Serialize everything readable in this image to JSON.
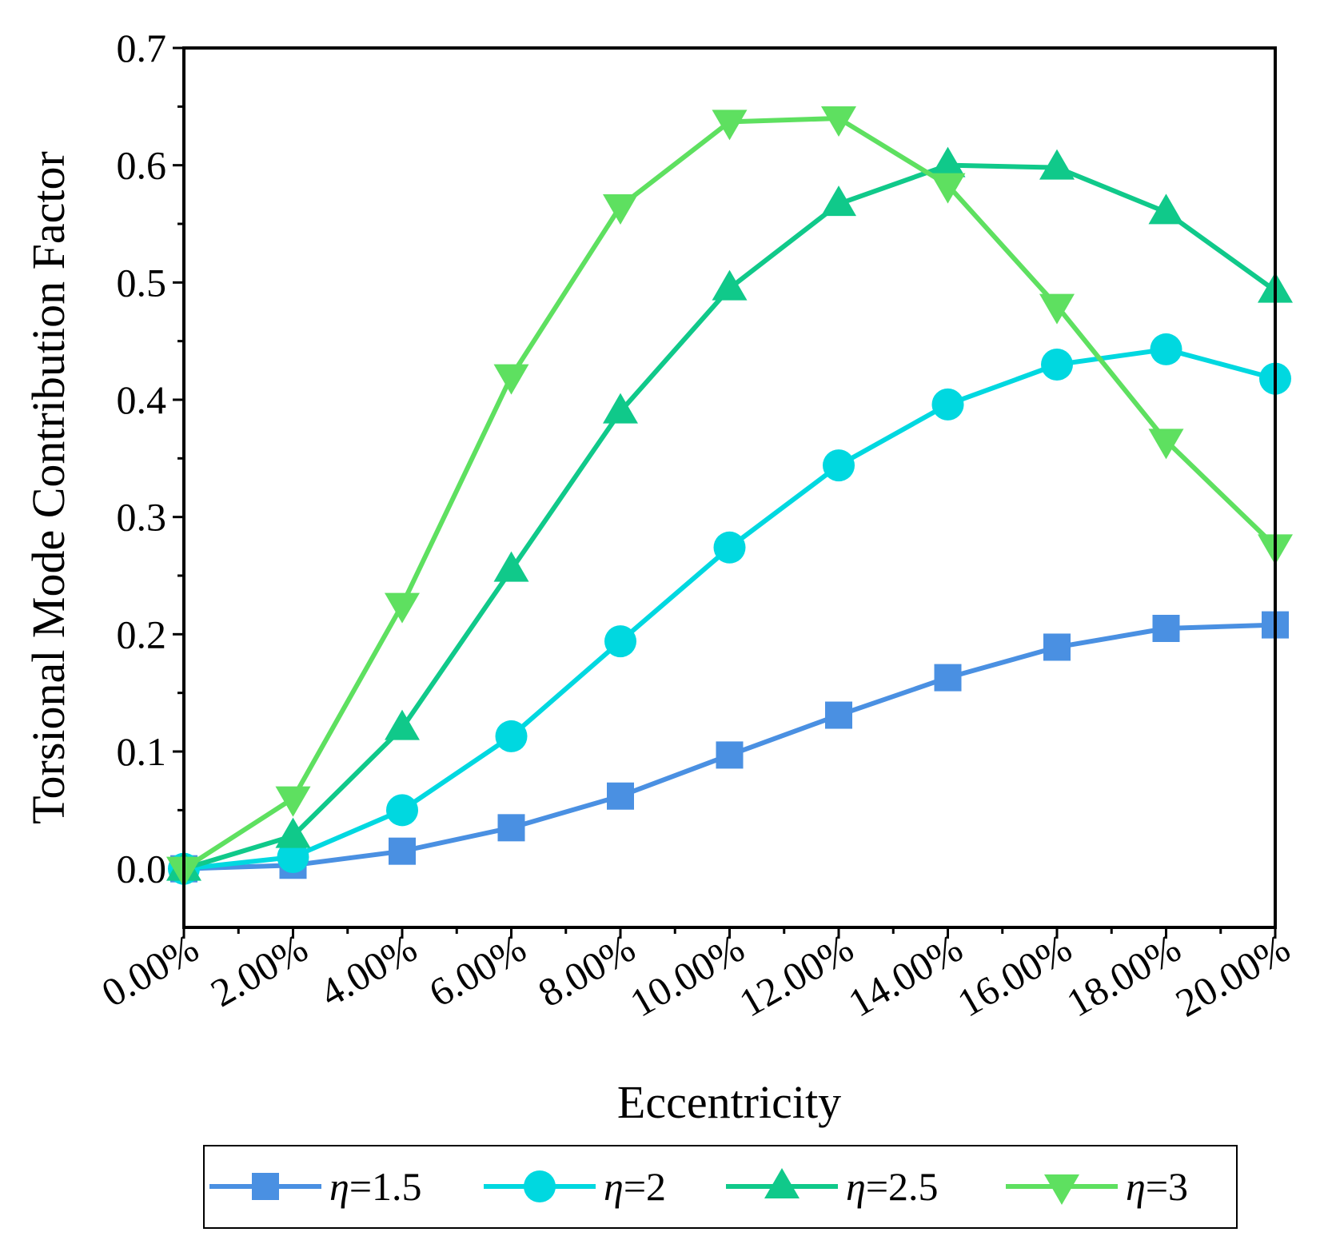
{
  "chart_data": {
    "type": "line",
    "title": "",
    "xlabel": "Eccentricity",
    "ylabel": "Torsional Mode Contribution Factor",
    "x": [
      0,
      2,
      4,
      6,
      8,
      10,
      12,
      14,
      16,
      18,
      20
    ],
    "x_tick_labels": [
      "0.00%",
      "2.00%",
      "4.00%",
      "6.00%",
      "8.00%",
      "10.00%",
      "12.00%",
      "14.00%",
      "16.00%",
      "18.00%",
      "20.00%"
    ],
    "y_ticks": [
      0.0,
      0.1,
      0.2,
      0.3,
      0.4,
      0.5,
      0.6,
      0.7
    ],
    "y_tick_labels": [
      "0.0",
      "0.1",
      "0.2",
      "0.3",
      "0.4",
      "0.5",
      "0.6",
      "0.7"
    ],
    "xlim": [
      0,
      20
    ],
    "ylim": [
      -0.05,
      0.7
    ],
    "grid": false,
    "legend_position": "bottom",
    "series": [
      {
        "name": "η=1.5",
        "eta": "η",
        "value": "=1.5",
        "color": "#4a90e2",
        "marker": "square",
        "values": [
          0.0,
          0.003,
          0.015,
          0.035,
          0.062,
          0.097,
          0.131,
          0.163,
          0.189,
          0.205,
          0.208
        ]
      },
      {
        "name": "η=2",
        "eta": "η",
        "value": "=2",
        "color": "#00d8e0",
        "marker": "circle",
        "values": [
          0.0,
          0.01,
          0.05,
          0.113,
          0.194,
          0.274,
          0.344,
          0.396,
          0.43,
          0.443,
          0.418
        ]
      },
      {
        "name": "η=2.5",
        "eta": "η",
        "value": "=2.5",
        "color": "#10c98a",
        "marker": "triangle-up",
        "values": [
          0.0,
          0.028,
          0.12,
          0.255,
          0.39,
          0.495,
          0.567,
          0.6,
          0.598,
          0.56,
          0.493
        ]
      },
      {
        "name": "η=3",
        "eta": "η",
        "value": "=3",
        "color": "#5ee060",
        "marker": "triangle-down",
        "values": [
          0.0,
          0.06,
          0.225,
          0.42,
          0.565,
          0.637,
          0.64,
          0.583,
          0.48,
          0.365,
          0.275
        ]
      }
    ]
  }
}
